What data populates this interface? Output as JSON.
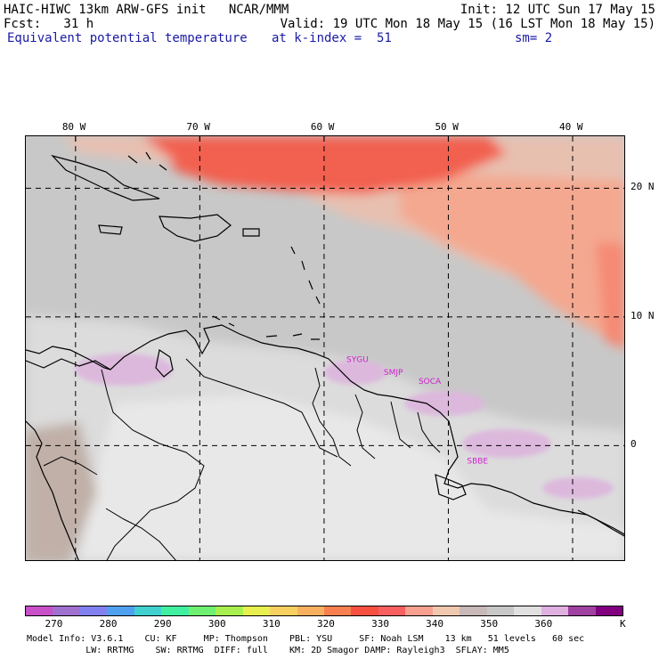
{
  "header": {
    "line1_left": "HAIC-HIWC 13km ARW-GFS init   NCAR/MMM",
    "line1_right": "Init: 12 UTC Sun 17 May 15",
    "line2_left": "Fcst:   31 h",
    "line2_right": "Valid: 19 UTC Mon 18 May 15 (16 LST Mon 18 May 15)",
    "line3_field": "Equivalent potential temperature",
    "line3_mid": "at k-index =  51",
    "line3_right": "sm= 2"
  },
  "map": {
    "lon_ticks": [
      {
        "label": "80 W",
        "lon": -80
      },
      {
        "label": "70 W",
        "lon": -70
      },
      {
        "label": "60 W",
        "lon": -60
      },
      {
        "label": "50 W",
        "lon": -50
      },
      {
        "label": "40 W",
        "lon": -40
      }
    ],
    "lat_ticks": [
      {
        "label": "20 N",
        "lat": 20
      },
      {
        "label": "10 N",
        "lat": 10
      },
      {
        "label": "0",
        "lat": 0
      }
    ],
    "stations": [
      {
        "label": "SYGU",
        "lon": -58.2,
        "lat": 6.5
      },
      {
        "label": "SMJP",
        "lon": -55.2,
        "lat": 5.5
      },
      {
        "label": "SOCA",
        "lon": -52.4,
        "lat": 4.8
      },
      {
        "label": "SBBE",
        "lon": -48.5,
        "lat": -1.4
      }
    ],
    "colors": {
      "land_outline": "#000000",
      "grid": "#000000",
      "station_text": "#d020d0"
    }
  },
  "colorbar": {
    "colors": [
      "#c850c8",
      "#a070d0",
      "#8080f0",
      "#50a0f0",
      "#40d0d0",
      "#40f0a0",
      "#70f070",
      "#a8f050",
      "#e8f050",
      "#f8d060",
      "#f8b060",
      "#f88050",
      "#f85040",
      "#f86060",
      "#f8a090",
      "#f0c8b0",
      "#c8b8b8",
      "#c8c8c8",
      "#e0e0e0",
      "#e0b0e0",
      "#a040a0",
      "#800080"
    ],
    "labels": [
      "270",
      "280",
      "290",
      "300",
      "310",
      "320",
      "330",
      "340",
      "350",
      "360",
      "K"
    ]
  },
  "footer": {
    "line1": "Model Info: V3.6.1    CU: KF     MP: Thompson    PBL: YSU     SF: Noah LSM    13 km   51 levels   60 sec",
    "line2": "           LW: RRTMG    SW: RRTMG  DIFF: full    KM: 2D Smagor DAMP: Rayleigh3  SFLAY: MM5"
  }
}
